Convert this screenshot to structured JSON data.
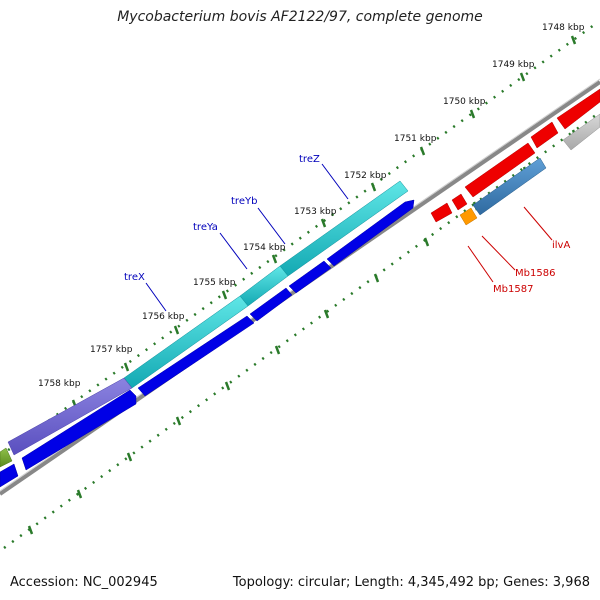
{
  "title": "Mycobacterium bovis AF2122/97, complete genome",
  "accession": "Accession: NC_002945",
  "topology": "Topology: circular; Length: 4,345,492 bp; Genes: 3,968",
  "colors": {
    "tick": "#2a7a2a",
    "kbp_text": "#111111",
    "backbone": "#808080",
    "blue_label": "#0000bb",
    "red_label": "#cc0000"
  },
  "kbp_labels": [
    "1748 kbp",
    "1749 kbp",
    "1750 kbp",
    "1751 kbp",
    "1752 kbp",
    "1753 kbp",
    "1754 kbp",
    "1755 kbp",
    "1756 kbp",
    "1757 kbp",
    "1758 kbp"
  ],
  "gene_labels": [
    {
      "name": "treZ",
      "color": "#0000bb"
    },
    {
      "name": "treYb",
      "color": "#0000bb"
    },
    {
      "name": "treYa",
      "color": "#0000bb"
    },
    {
      "name": "treX",
      "color": "#0000bb"
    },
    {
      "name": "ilvA",
      "color": "#cc0000"
    },
    {
      "name": "Mb1586",
      "color": "#cc0000"
    },
    {
      "name": "Mb1587",
      "color": "#cc0000"
    }
  ]
}
